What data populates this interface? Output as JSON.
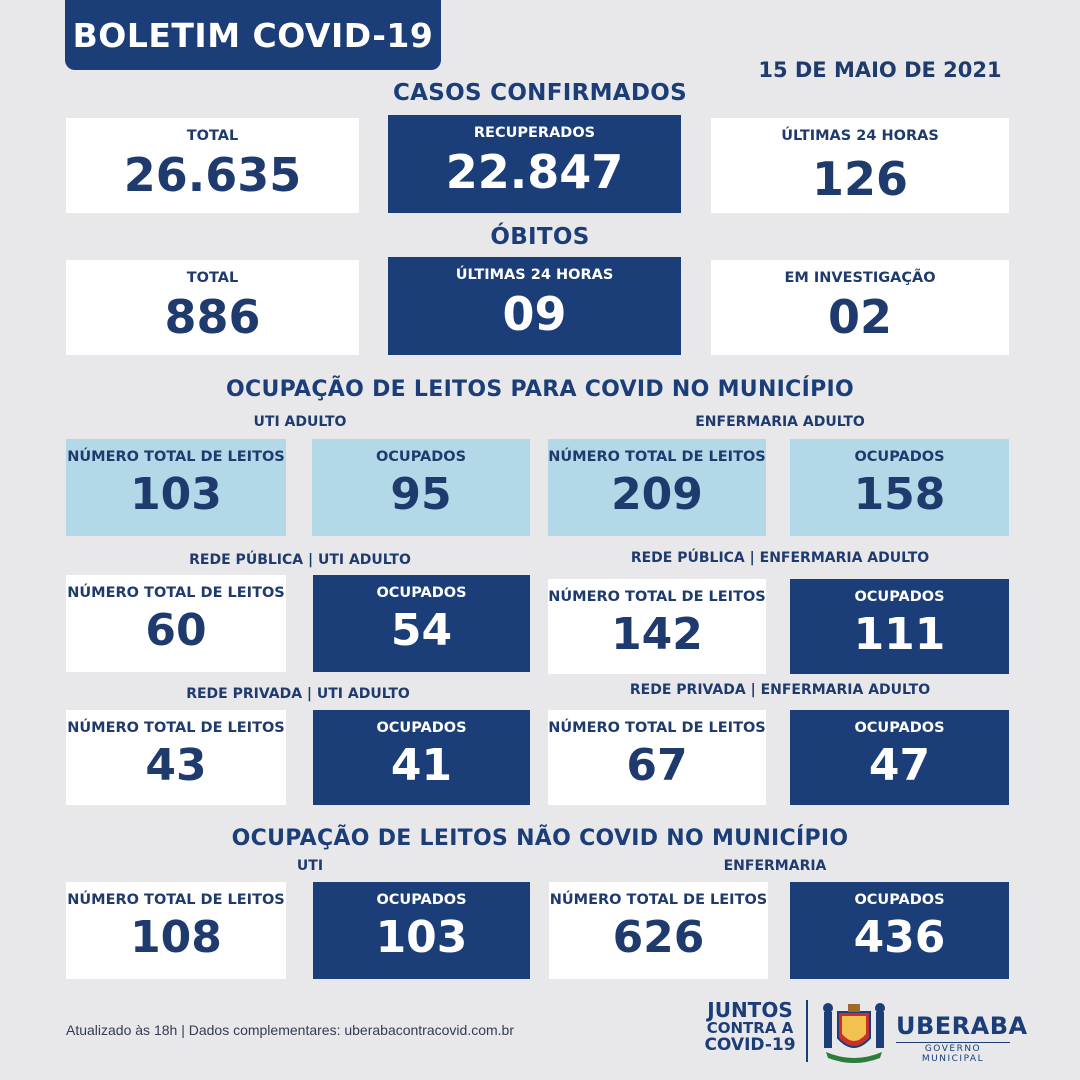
{
  "header": {
    "title": "BOLETIM COVID-19",
    "date": "15 DE MAIO DE 2021"
  },
  "casos": {
    "title": "CASOS CONFIRMADOS",
    "total_label": "TOTAL",
    "total_value": "26.635",
    "recuperados_label": "RECUPERADOS",
    "recuperados_value": "22.847",
    "ultimas_label": "ÚLTIMAS 24 HORAS",
    "ultimas_value": "126"
  },
  "obitos": {
    "title": "ÓBITOS",
    "total_label": "TOTAL",
    "total_value": "886",
    "ultimas_label": "ÚLTIMAS 24 HORAS",
    "ultimas_value": "09",
    "investigacao_label": "EM INVESTIGAÇÃO",
    "investigacao_value": "02"
  },
  "leitos_covid": {
    "title": "OCUPAÇÃO DE LEITOS PARA COVID NO MUNICÍPIO",
    "uti_label": "UTI ADULTO",
    "enf_label": "ENFERMARIA ADULTO",
    "total_leitos_label": "NÚMERO TOTAL DE LEITOS",
    "ocupados_label": "OCUPADOS",
    "uti_total": "103",
    "uti_ocupados": "95",
    "enf_total": "209",
    "enf_ocupados": "158",
    "publica_uti_label": "REDE PÚBLICA | UTI ADULTO",
    "publica_enf_label": "REDE PÚBLICA | ENFERMARIA ADULTO",
    "publica_uti_total": "60",
    "publica_uti_ocupados": "54",
    "publica_enf_total": "142",
    "publica_enf_ocupados": "111",
    "privada_uti_label": "REDE PRIVADA | UTI ADULTO",
    "privada_enf_label": "REDE PRIVADA | ENFERMARIA ADULTO",
    "privada_uti_total": "43",
    "privada_uti_ocupados": "41",
    "privada_enf_total": "67",
    "privada_enf_ocupados": "47"
  },
  "leitos_nao_covid": {
    "title": "OCUPAÇÃO DE LEITOS NÃO COVID NO MUNICÍPIO",
    "uti_label": "UTI",
    "enf_label": "ENFERMARIA",
    "uti_total": "108",
    "uti_ocupados": "103",
    "enf_total": "626",
    "enf_ocupados": "436"
  },
  "footer": {
    "text": "Atualizado às 18h | Dados complementares: uberabacontracovid.com.br",
    "juntos_1": "JUNTOS",
    "juntos_2": "CONTRA A",
    "juntos_3": "COVID-19",
    "city": "UBERABA",
    "gov": "GOVERNO MUNICIPAL"
  },
  "colors": {
    "navy": "#1b3d78",
    "light_blue": "#b3d8e8",
    "background": "#e8e8ea"
  }
}
